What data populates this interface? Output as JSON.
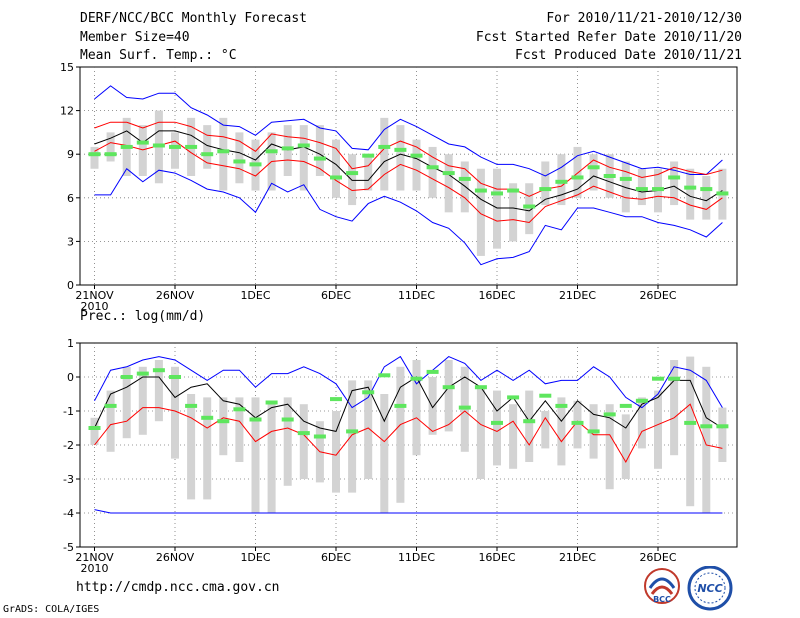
{
  "header": {
    "title": "DERF/NCC/BCC Monthly Forecast",
    "member": "Member Size=40",
    "variable": "Mean Surf. Temp.: °C",
    "for_range": "For 2010/11/21-2010/12/30",
    "start_ref": "Fcst Started Refer Date 2010/11/20",
    "produced": "Fcst Produced Date 2010/11/21"
  },
  "footer": {
    "url": "http://cmdp.ncc.cma.gov.cn",
    "credit": "GrADS: COLA/IGES",
    "logo1": "BCC",
    "logo2": "NCC"
  },
  "xaxis": {
    "ticks": [
      "21NOV",
      "26NOV",
      "1DEC",
      "6DEC",
      "11DEC",
      "16DEC",
      "21DEC",
      "26DEC"
    ],
    "year": "2010"
  },
  "colors": {
    "mean": "#000000",
    "spread": "#ff0000",
    "envelope": "#0000ff",
    "box": "#d3d3d3",
    "marker": "#5ee65e"
  },
  "chart_data": [
    {
      "type": "line",
      "title": "Mean Surf. Temp.: °C",
      "ylim": [
        0,
        15
      ],
      "yticks": [
        0,
        3,
        6,
        9,
        12,
        15
      ],
      "days": 40,
      "series": [
        {
          "name": "max",
          "values": [
            12.8,
            13.7,
            12.9,
            12.8,
            13.2,
            13.2,
            12.2,
            11.7,
            11.0,
            10.9,
            10.3,
            11.2,
            11.3,
            11.4,
            10.8,
            10.6,
            9.4,
            9.3,
            10.7,
            11.4,
            10.9,
            10.3,
            9.7,
            9.5,
            8.8,
            8.3,
            8.3,
            8.0,
            7.5,
            8.1,
            8.9,
            9.2,
            8.8,
            8.4,
            8.0,
            8.1,
            7.9,
            7.6,
            7.6,
            8.6
          ]
        },
        {
          "name": "upper",
          "values": [
            10.8,
            11.2,
            11.2,
            10.8,
            11.2,
            11.2,
            10.9,
            10.3,
            10.2,
            9.9,
            9.2,
            10.4,
            10.2,
            10.1,
            9.8,
            9.4,
            8.0,
            8.2,
            9.4,
            9.9,
            9.5,
            8.8,
            8.2,
            8.0,
            7.0,
            6.6,
            6.6,
            6.1,
            6.6,
            6.8,
            7.7,
            8.6,
            8.1,
            7.8,
            7.4,
            7.6,
            8.1,
            7.8,
            7.6,
            7.9
          ]
        },
        {
          "name": "mean",
          "values": [
            9.7,
            10.1,
            10.6,
            9.8,
            10.6,
            10.6,
            10.3,
            9.6,
            9.3,
            9.1,
            8.6,
            9.7,
            9.3,
            9.5,
            9.0,
            8.3,
            7.2,
            7.2,
            8.5,
            9.0,
            8.7,
            8.1,
            7.6,
            6.8,
            5.9,
            5.3,
            5.3,
            5.1,
            5.9,
            6.2,
            6.6,
            7.5,
            7.1,
            6.7,
            6.4,
            6.5,
            6.8,
            6.1,
            5.8,
            6.5
          ]
        },
        {
          "name": "lower",
          "values": [
            9.2,
            9.8,
            9.6,
            9.3,
            9.6,
            9.9,
            9.1,
            8.4,
            8.2,
            8.0,
            7.5,
            8.5,
            8.6,
            8.5,
            8.0,
            7.2,
            6.5,
            6.6,
            7.6,
            8.3,
            7.9,
            7.3,
            6.7,
            6.0,
            4.9,
            4.4,
            4.5,
            4.3,
            5.4,
            5.8,
            6.2,
            6.8,
            6.4,
            6.0,
            5.9,
            6.1,
            6.0,
            5.5,
            5.2,
            6.0
          ]
        },
        {
          "name": "min",
          "values": [
            6.2,
            6.2,
            8.0,
            7.1,
            7.9,
            7.7,
            7.2,
            6.6,
            6.4,
            6.0,
            5.0,
            7.0,
            6.4,
            6.9,
            5.2,
            4.7,
            4.4,
            5.6,
            6.1,
            5.7,
            5.1,
            4.3,
            3.9,
            2.9,
            1.4,
            1.8,
            1.9,
            2.3,
            4.1,
            3.8,
            5.3,
            5.3,
            5.0,
            4.7,
            4.7,
            4.3,
            4.1,
            3.8,
            3.3,
            4.3
          ]
        }
      ],
      "boxes": [
        [
          8.0,
          9.5
        ],
        [
          8.5,
          10.5
        ],
        [
          7.5,
          11.5
        ],
        [
          7.5,
          11.0
        ],
        [
          7.0,
          12.0
        ],
        [
          8.0,
          10.5
        ],
        [
          7.5,
          11.5
        ],
        [
          8.0,
          11.0
        ],
        [
          6.5,
          11.5
        ],
        [
          7.0,
          10.5
        ],
        [
          6.5,
          10.0
        ],
        [
          6.5,
          10.5
        ],
        [
          7.5,
          11.0
        ],
        [
          6.5,
          11.0
        ],
        [
          7.5,
          11.0
        ],
        [
          6.0,
          10.0
        ],
        [
          5.5,
          9.0
        ],
        [
          6.5,
          9.0
        ],
        [
          6.5,
          11.5
        ],
        [
          6.5,
          11.0
        ],
        [
          6.5,
          10.0
        ],
        [
          6.0,
          9.5
        ],
        [
          5.0,
          9.0
        ],
        [
          5.0,
          8.5
        ],
        [
          2.0,
          8.0
        ],
        [
          2.5,
          8.0
        ],
        [
          3.0,
          7.0
        ],
        [
          3.5,
          7.0
        ],
        [
          5.5,
          8.5
        ],
        [
          5.5,
          9.0
        ],
        [
          6.0,
          9.5
        ],
        [
          6.5,
          9.0
        ],
        [
          6.0,
          9.0
        ],
        [
          5.0,
          8.5
        ],
        [
          5.5,
          8.0
        ],
        [
          5.0,
          8.0
        ],
        [
          5.5,
          8.5
        ],
        [
          4.5,
          8.0
        ],
        [
          4.5,
          7.5
        ],
        [
          4.5,
          8.0
        ]
      ],
      "markers": [
        9.0,
        9.0,
        9.5,
        9.8,
        9.6,
        9.5,
        9.5,
        9.0,
        9.2,
        8.5,
        8.3,
        9.2,
        9.4,
        9.6,
        8.7,
        7.4,
        7.7,
        8.9,
        9.5,
        9.3,
        8.9,
        8.1,
        7.7,
        7.3,
        6.5,
        6.3,
        6.5,
        5.4,
        6.6,
        7.1,
        7.4,
        8.1,
        7.5,
        7.3,
        6.6,
        6.6,
        7.4,
        6.7,
        6.6,
        6.3
      ]
    },
    {
      "type": "line",
      "title": "Prec.: log(mm/d)",
      "ylim": [
        -5,
        1
      ],
      "yticks": [
        -5,
        -4,
        -3,
        -2,
        -1,
        0,
        1
      ],
      "days": 40,
      "series": [
        {
          "name": "max",
          "values": [
            -0.7,
            0.2,
            0.3,
            0.5,
            0.6,
            0.5,
            0.2,
            -0.1,
            0.2,
            0.2,
            -0.3,
            0.1,
            0.1,
            0.3,
            0.1,
            -0.2,
            -0.9,
            -0.6,
            0.3,
            0.6,
            -0.2,
            0.2,
            0.6,
            0.4,
            -0.1,
            0.2,
            -0.1,
            0.2,
            -0.2,
            -0.1,
            -0.1,
            0.3,
            0.0,
            -0.6,
            -0.9,
            -0.5,
            0.3,
            0.2,
            -0.1,
            -0.9
          ]
        },
        {
          "name": "mean",
          "values": [
            -1.5,
            -0.5,
            -0.3,
            0.0,
            0.0,
            -0.6,
            -0.3,
            -0.2,
            -0.7,
            -0.8,
            -1.2,
            -0.9,
            -0.8,
            -1.3,
            -1.5,
            -1.6,
            -0.4,
            -0.3,
            -1.3,
            -0.3,
            0.0,
            -0.9,
            -0.3,
            0.0,
            -0.3,
            -1.0,
            -0.6,
            -1.3,
            -0.7,
            -1.3,
            -0.7,
            -1.1,
            -1.2,
            -1.5,
            -0.8,
            -0.6,
            -0.1,
            -0.1,
            -1.2,
            -1.5
          ]
        },
        {
          "name": "lower",
          "values": [
            -2.0,
            -1.4,
            -1.3,
            -0.9,
            -0.9,
            -1.0,
            -1.2,
            -1.5,
            -1.2,
            -1.3,
            -1.9,
            -1.6,
            -1.5,
            -1.7,
            -2.2,
            -2.3,
            -1.7,
            -1.5,
            -1.9,
            -1.4,
            -1.2,
            -1.6,
            -1.4,
            -1.0,
            -1.4,
            -1.6,
            -1.3,
            -2.0,
            -1.2,
            -1.9,
            -1.3,
            -1.7,
            -1.7,
            -2.5,
            -1.6,
            -1.4,
            -1.2,
            -0.8,
            -2.0,
            -2.1
          ]
        },
        {
          "name": "min",
          "values": [
            -3.9,
            -4.0,
            -4.0,
            -4.0,
            -4.0,
            -4.0,
            -4.0,
            -4.0,
            -4.0,
            -4.0,
            -4.0,
            -4.0,
            -4.0,
            -4.0,
            -4.0,
            -4.0,
            -4.0,
            -4.0,
            -4.0,
            -4.0,
            -4.0,
            -4.0,
            -4.0,
            -4.0,
            -4.0,
            -4.0,
            -4.0,
            -4.0,
            -4.0,
            -4.0,
            -4.0,
            -4.0,
            -4.0,
            -4.0,
            -4.0,
            -4.0,
            -4.0,
            -4.0,
            -4.0,
            -4.0
          ]
        }
      ],
      "boxes": [
        [
          -2.0,
          -1.2
        ],
        [
          -2.2,
          -0.4
        ],
        [
          -1.8,
          0.3
        ],
        [
          -1.7,
          0.3
        ],
        [
          -1.3,
          0.5
        ],
        [
          -2.4,
          0.3
        ],
        [
          -3.6,
          -0.5
        ],
        [
          -3.6,
          -0.6
        ],
        [
          -2.3,
          -0.6
        ],
        [
          -2.5,
          -0.6
        ],
        [
          -4.0,
          -0.6
        ],
        [
          -4.0,
          -0.7
        ],
        [
          -3.2,
          -0.6
        ],
        [
          -3.0,
          -0.8
        ],
        [
          -3.1,
          -1.3
        ],
        [
          -3.4,
          -1.0
        ],
        [
          -3.4,
          -0.1
        ],
        [
          -3.0,
          -0.1
        ],
        [
          -4.0,
          -0.5
        ],
        [
          -3.7,
          0.3
        ],
        [
          -2.3,
          0.5
        ],
        [
          -1.7,
          0.0
        ],
        [
          -1.6,
          0.5
        ],
        [
          -2.2,
          0.3
        ],
        [
          -3.0,
          -0.3
        ],
        [
          -2.6,
          -0.4
        ],
        [
          -2.7,
          -0.8
        ],
        [
          -2.5,
          -0.4
        ],
        [
          -2.1,
          -1.0
        ],
        [
          -2.6,
          -0.6
        ],
        [
          -2.1,
          -0.7
        ],
        [
          -2.4,
          -0.8
        ],
        [
          -3.3,
          -0.8
        ],
        [
          -3.0,
          -1.1
        ],
        [
          -2.1,
          -0.6
        ],
        [
          -2.7,
          -0.4
        ],
        [
          -2.3,
          0.5
        ],
        [
          -3.8,
          0.6
        ],
        [
          -4.0,
          0.3
        ],
        [
          -2.5,
          -0.9
        ]
      ],
      "markers": [
        -1.5,
        -0.85,
        0.0,
        0.1,
        0.2,
        0.0,
        -0.85,
        -1.2,
        -1.3,
        -0.95,
        -1.25,
        -0.75,
        -1.25,
        -1.65,
        -1.75,
        -0.65,
        -1.6,
        -0.45,
        0.05,
        -0.85,
        -0.05,
        0.15,
        -0.3,
        -0.9,
        -0.3,
        -1.35,
        -0.6,
        -1.3,
        -0.55,
        -0.85,
        -1.35,
        -1.6,
        -1.1,
        -0.85,
        -0.7,
        -0.05,
        -0.05,
        -1.35,
        -1.45,
        -1.45
      ]
    }
  ]
}
